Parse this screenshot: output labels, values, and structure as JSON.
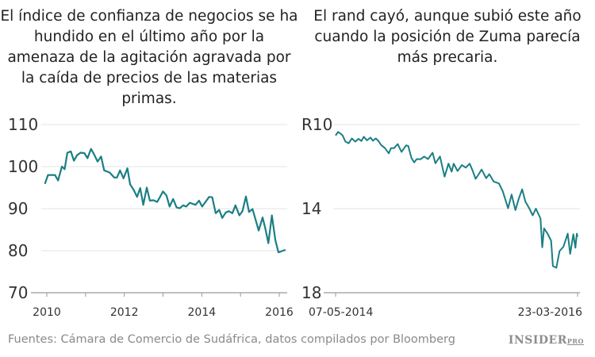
{
  "chart_data": [
    {
      "type": "line",
      "title": "El índice de confianza de negocios se ha hundido en el último año por la amenaza de la agitación agravada por la caída de precios de las materias primas.",
      "ylim": [
        70,
        110
      ],
      "yticks": [
        "70",
        "80",
        "90",
        "100",
        "110"
      ],
      "xlim": [
        2009.9,
        2016.2
      ],
      "xticks": [
        "2010",
        "2012",
        "2014",
        "2016"
      ],
      "grid": true,
      "color": "#1a7f84",
      "x": [
        2009.95,
        2010.03,
        2010.21,
        2010.29,
        2010.39,
        2010.46,
        2010.53,
        2010.62,
        2010.7,
        2010.78,
        2010.87,
        2010.97,
        2011.05,
        2011.14,
        2011.22,
        2011.31,
        2011.4,
        2011.48,
        2011.62,
        2011.74,
        2011.81,
        2011.89,
        2011.98,
        2012.08,
        2012.15,
        2012.24,
        2012.33,
        2012.41,
        2012.49,
        2012.58,
        2012.66,
        2012.75,
        2012.85,
        2013.0,
        2013.09,
        2013.17,
        2013.26,
        2013.35,
        2013.43,
        2013.52,
        2013.6,
        2013.69,
        2013.84,
        2013.93,
        2014.01,
        2014.19,
        2014.27,
        2014.36,
        2014.45,
        2014.53,
        2014.62,
        2014.7,
        2014.79,
        2014.87,
        2014.97,
        2015.05,
        2015.14,
        2015.22,
        2015.31,
        2015.47,
        2015.57,
        2015.64,
        2015.72,
        2015.81,
        2015.9,
        2015.98,
        2016.16
      ],
      "values": [
        95.9,
        98,
        98,
        96.7,
        100,
        99.4,
        103.3,
        103.6,
        101.4,
        102.7,
        103.3,
        103.2,
        102,
        104.2,
        102.9,
        101.2,
        102.4,
        99.1,
        98.6,
        97.4,
        97.4,
        99.1,
        97.2,
        99.6,
        95.8,
        94.5,
        92.8,
        94.9,
        90.9,
        95,
        91.9,
        92,
        91.6,
        94.1,
        93.1,
        90.5,
        92.3,
        90.3,
        90.1,
        90.8,
        90.5,
        91.4,
        90.9,
        91.9,
        90.5,
        92.8,
        92.7,
        88.9,
        89.7,
        87.8,
        89.1,
        89.4,
        88.9,
        90.8,
        88.4,
        89.4,
        92.9,
        89.2,
        89.9,
        84.8,
        87.9,
        85.3,
        81.8,
        88.4,
        82.5,
        79.6,
        80.2
      ]
    },
    {
      "type": "line",
      "title": "El rand cayó, aunque subió este año cuando la posición de Zuma parecía más precaria.",
      "ylim": [
        18,
        10
      ],
      "inverted_y": true,
      "yticks": [
        "R10",
        "14",
        "18"
      ],
      "xlim": [
        "2014-05-07",
        "2016-03-23"
      ],
      "xticks": [
        "07-05-2014",
        "23-03-2016"
      ],
      "grid": true,
      "color": "#1a7f84",
      "x": [
        "2014-05-07",
        "2014-05-14",
        "2014-05-21",
        "2014-05-27",
        "2014-06-04",
        "2014-06-13",
        "2014-06-22",
        "2014-07-02",
        "2014-07-11",
        "2014-07-19",
        "2014-07-26",
        "2014-08-04",
        "2014-08-14",
        "2014-08-21",
        "2014-08-29",
        "2014-09-05",
        "2014-09-13",
        "2014-09-24",
        "2014-10-05",
        "2014-10-11",
        "2014-10-20",
        "2014-10-30",
        "2014-11-10",
        "2014-11-23",
        "2014-11-29",
        "2014-12-08",
        "2014-12-16",
        "2014-12-23",
        "2015-01-03",
        "2015-01-13",
        "2015-01-24",
        "2015-02-06",
        "2015-02-14",
        "2015-02-27",
        "2015-03-12",
        "2015-03-23",
        "2015-04-01",
        "2015-04-07",
        "2015-04-18",
        "2015-04-30",
        "2015-05-11",
        "2015-05-22",
        "2015-05-30",
        "2015-06-08",
        "2015-06-17",
        "2015-06-25",
        "2015-07-08",
        "2015-07-17",
        "2015-07-29",
        "2015-08-13",
        "2015-08-24",
        "2015-09-08",
        "2015-09-18",
        "2015-09-29",
        "2015-10-08",
        "2015-10-18",
        "2015-10-27",
        "2015-11-07",
        "2015-11-17",
        "2015-11-26",
        "2015-12-09",
        "2015-12-14",
        "2015-12-19",
        "2015-12-29",
        "2016-01-08",
        "2016-01-13",
        "2016-01-23",
        "2016-02-01",
        "2016-02-12",
        "2016-02-24",
        "2016-03-02",
        "2016-03-11",
        "2016-03-17",
        "2016-03-21",
        "2016-03-23"
      ],
      "values": [
        10.52,
        10.35,
        10.43,
        10.52,
        10.81,
        10.89,
        10.66,
        10.81,
        10.68,
        10.78,
        10.58,
        10.75,
        10.62,
        10.77,
        10.66,
        10.77,
        10.97,
        11.12,
        11.37,
        11.12,
        11.12,
        10.93,
        11.3,
        10.99,
        11.02,
        11.59,
        11.8,
        11.64,
        11.65,
        11.52,
        11.64,
        11.34,
        11.84,
        11.52,
        12.48,
        11.86,
        12.24,
        11.86,
        12.21,
        11.93,
        12.05,
        11.86,
        12.17,
        12.58,
        12.36,
        12.14,
        12.55,
        12.36,
        12.71,
        12.8,
        13.17,
        13.98,
        13.33,
        14.07,
        13.54,
        13.08,
        13.66,
        13.98,
        14.32,
        14.0,
        14.47,
        15.84,
        14.94,
        15.19,
        15.53,
        16.73,
        16.81,
        16.02,
        15.81,
        15.19,
        16.15,
        15.22,
        15.86,
        15.19,
        15.34
      ]
    }
  ],
  "footer": {
    "source": "Fuentes: Cámara de Comercio de Sudáfrica, datos compilados por Bloomberg",
    "logo": "INSIDER PRO"
  }
}
